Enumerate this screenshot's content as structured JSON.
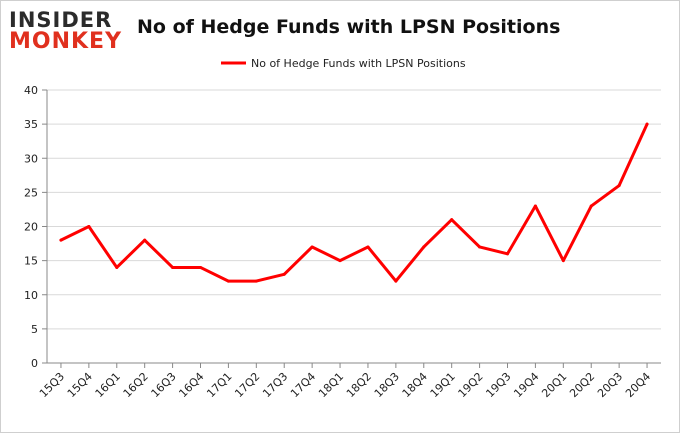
{
  "header": {
    "logo_top": "INSIDER",
    "logo_bottom": "MONKEY"
  },
  "chart_data": {
    "type": "line",
    "title": "No of Hedge Funds with LPSN Positions",
    "xlabel": "",
    "ylabel": "",
    "categories": [
      "15Q3",
      "15Q4",
      "16Q1",
      "16Q2",
      "16Q3",
      "16Q4",
      "17Q1",
      "17Q2",
      "17Q3",
      "17Q4",
      "18Q1",
      "18Q2",
      "18Q3",
      "18Q4",
      "19Q1",
      "19Q2",
      "19Q3",
      "19Q4",
      "20Q1",
      "20Q2",
      "20Q3",
      "20Q4"
    ],
    "series": [
      {
        "name": "No of Hedge Funds with LPSN Positions",
        "color": "#ff0000",
        "values": [
          18,
          20,
          14,
          18,
          14,
          14,
          12,
          12,
          13,
          17,
          15,
          17,
          12,
          17,
          21,
          17,
          16,
          23,
          15,
          23,
          26,
          35
        ]
      }
    ],
    "ylim": [
      0,
      40
    ],
    "yticks": [
      0,
      5,
      10,
      15,
      20,
      25,
      30,
      35,
      40
    ],
    "grid": true,
    "legend_position": "top-center"
  }
}
